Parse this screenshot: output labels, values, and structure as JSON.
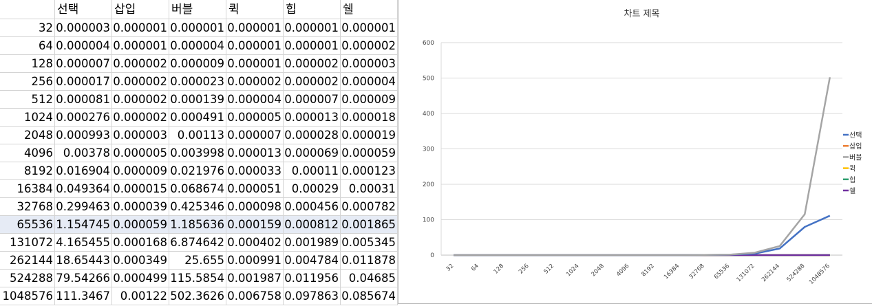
{
  "sheet": {
    "headers": [
      "",
      "선택",
      "삽입",
      "버블",
      "퀵",
      "힙",
      "쉘"
    ],
    "rows": [
      [
        "32",
        "0.000003",
        "0.000001",
        "0.000001",
        "0.000001",
        "0.000001",
        "0.000001"
      ],
      [
        "64",
        "0.000004",
        "0.000001",
        "0.000004",
        "0.000001",
        "0.000001",
        "0.000002"
      ],
      [
        "128",
        "0.000007",
        "0.000002",
        "0.000009",
        "0.000001",
        "0.000002",
        "0.000003"
      ],
      [
        "256",
        "0.000017",
        "0.000002",
        "0.000023",
        "0.000002",
        "0.000002",
        "0.000004"
      ],
      [
        "512",
        "0.000081",
        "0.000002",
        "0.000139",
        "0.000004",
        "0.000007",
        "0.000009"
      ],
      [
        "1024",
        "0.000276",
        "0.000002",
        "0.000491",
        "0.000005",
        "0.000013",
        "0.000018"
      ],
      [
        "2048",
        "0.000993",
        "0.000003",
        "0.00113",
        "0.000007",
        "0.000028",
        "0.000019"
      ],
      [
        "4096",
        "0.00378",
        "0.000005",
        "0.003998",
        "0.000013",
        "0.000069",
        "0.000059"
      ],
      [
        "8192",
        "0.016904",
        "0.000009",
        "0.021976",
        "0.000033",
        "0.00011",
        "0.000123"
      ],
      [
        "16384",
        "0.049364",
        "0.000015",
        "0.068674",
        "0.000051",
        "0.00029",
        "0.00031"
      ],
      [
        "32768",
        "0.299463",
        "0.000039",
        "0.425346",
        "0.000098",
        "0.000456",
        "0.000782"
      ],
      [
        "65536",
        "1.154745",
        "0.000059",
        "1.185636",
        "0.000159",
        "0.000812",
        "0.001865"
      ],
      [
        "131072",
        "4.165455",
        "0.000168",
        "6.874642",
        "0.000402",
        "0.001989",
        "0.005345"
      ],
      [
        "262144",
        "18.65443",
        "0.000349",
        "25.655",
        "0.000991",
        "0.004784",
        "0.011878"
      ],
      [
        "524288",
        "79.54266",
        "0.000499",
        "115.5854",
        "0.001987",
        "0.011956",
        "0.04685"
      ],
      [
        "1048576",
        "111.3467",
        "0.00122",
        "502.3626",
        "0.006758",
        "0.097863",
        "0.085674"
      ]
    ],
    "selected_row_index": 11
  },
  "chart_data": {
    "type": "line",
    "title": "차트 제목",
    "categories": [
      "32",
      "64",
      "128",
      "256",
      "512",
      "1024",
      "2048",
      "4096",
      "8192",
      "16384",
      "32768",
      "65536",
      "131072",
      "262144",
      "524288",
      "1048576"
    ],
    "ylim": [
      0,
      600
    ],
    "yticks": [
      "0",
      "100",
      "200",
      "300",
      "400",
      "500",
      "600"
    ],
    "grid": true,
    "legend_position": "right",
    "series": [
      {
        "name": "선택",
        "color": "#4472c4",
        "values": [
          3e-06,
          4e-06,
          7e-06,
          1.7e-05,
          8.1e-05,
          0.000276,
          0.000993,
          0.00378,
          0.016904,
          0.049364,
          0.299463,
          1.154745,
          4.165455,
          18.65443,
          79.54266,
          111.3467
        ]
      },
      {
        "name": "삽입",
        "color": "#ed7d31",
        "values": [
          1e-06,
          1e-06,
          2e-06,
          2e-06,
          2e-06,
          2e-06,
          3e-06,
          5e-06,
          9e-06,
          1.5e-05,
          3.9e-05,
          5.9e-05,
          0.000168,
          0.000349,
          0.000499,
          0.00122
        ]
      },
      {
        "name": "버블",
        "color": "#a5a5a5",
        "values": [
          1e-06,
          4e-06,
          9e-06,
          2.3e-05,
          0.000139,
          0.000491,
          0.00113,
          0.003998,
          0.021976,
          0.068674,
          0.425346,
          1.185636,
          6.874642,
          25.655,
          115.5854,
          502.3626
        ]
      },
      {
        "name": "퀵",
        "color": "#ffc000",
        "values": [
          1e-06,
          1e-06,
          1e-06,
          2e-06,
          4e-06,
          5e-06,
          7e-06,
          1.3e-05,
          3.3e-05,
          5.1e-05,
          9.8e-05,
          0.000159,
          0.000402,
          0.000991,
          0.001987,
          0.006758
        ]
      },
      {
        "name": "힙",
        "color": "#2e9e6f",
        "values": [
          1e-06,
          1e-06,
          2e-06,
          2e-06,
          7e-06,
          1.3e-05,
          2.8e-05,
          6.9e-05,
          0.00011,
          0.00029,
          0.000456,
          0.000812,
          0.001989,
          0.004784,
          0.011956,
          0.097863
        ]
      },
      {
        "name": "쉘",
        "color": "#7030a0",
        "values": [
          1e-06,
          2e-06,
          3e-06,
          4e-06,
          9e-06,
          1.8e-05,
          1.9e-05,
          5.9e-05,
          0.000123,
          0.00031,
          0.000782,
          0.001865,
          0.005345,
          0.011878,
          0.04685,
          0.085674
        ]
      }
    ]
  }
}
